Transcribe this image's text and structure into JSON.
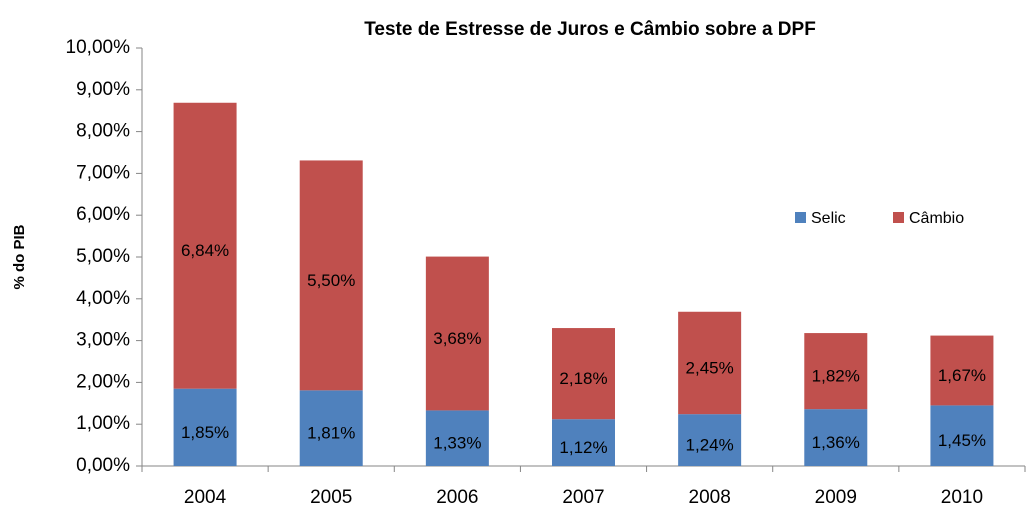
{
  "chart_data": {
    "type": "stacked_bar",
    "title": "Teste de Estresse de Juros e Câmbio sobre a DPF",
    "y_label": "% do PIB",
    "categories": [
      "2004",
      "2005",
      "2006",
      "2007",
      "2008",
      "2009",
      "2010"
    ],
    "series": [
      {
        "name": "Selic",
        "color": "#4f81bd",
        "values": [
          1.85,
          1.81,
          1.33,
          1.12,
          1.24,
          1.36,
          1.45
        ],
        "value_labels": [
          "1,85%",
          "1,81%",
          "1,33%",
          "1,12%",
          "1,24%",
          "1,36%",
          "1,45%"
        ]
      },
      {
        "name": "Câmbio",
        "color": "#c0504d",
        "values": [
          6.84,
          5.5,
          3.68,
          2.18,
          2.45,
          1.82,
          1.67
        ],
        "value_labels": [
          "6,84%",
          "5,50%",
          "3,68%",
          "2,18%",
          "2,45%",
          "1,82%",
          "1,67%"
        ]
      }
    ],
    "ylim": [
      0,
      10
    ],
    "yticks": [
      {
        "value": 0,
        "label": "0,00%"
      },
      {
        "value": 1,
        "label": "1,00%"
      },
      {
        "value": 2,
        "label": "2,00%"
      },
      {
        "value": 3,
        "label": "3,00%"
      },
      {
        "value": 4,
        "label": "4,00%"
      },
      {
        "value": 5,
        "label": "5,00%"
      },
      {
        "value": 6,
        "label": "6,00%"
      },
      {
        "value": 7,
        "label": "7,00%"
      },
      {
        "value": 8,
        "label": "8,00%"
      },
      {
        "value": 9,
        "label": "9,00%"
      },
      {
        "value": 10,
        "label": "10,00%"
      }
    ],
    "grid": false,
    "legend": "right"
  }
}
